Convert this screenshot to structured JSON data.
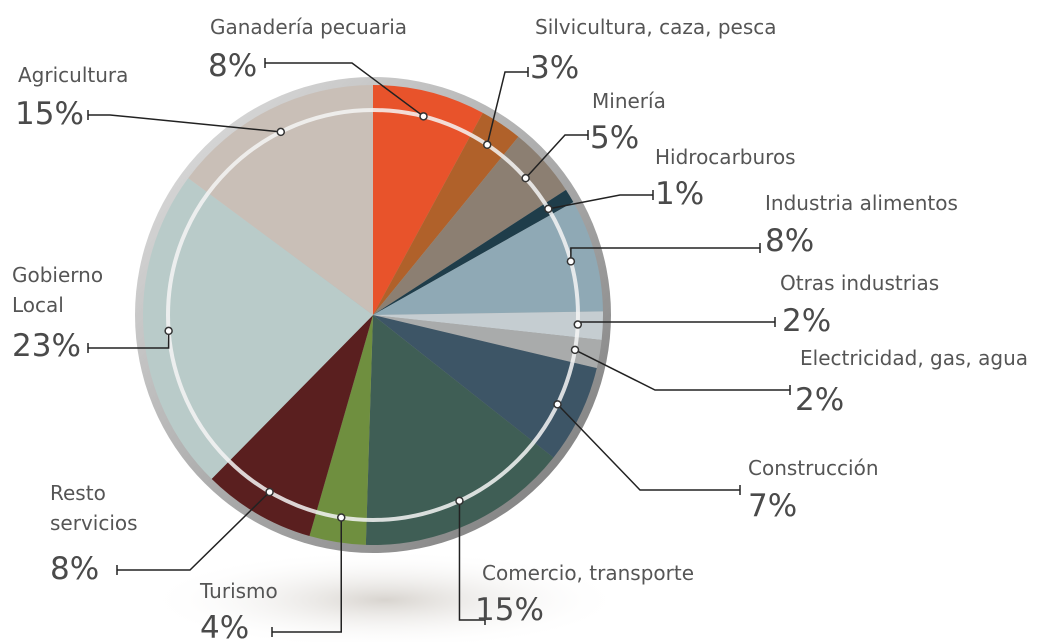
{
  "chart_data": {
    "type": "pie",
    "categories": [
      "Ganadería pecuaria",
      "Silvicultura, caza, pesca",
      "Minería",
      "Hidrocarburos",
      "Industria alimentos",
      "Otras industrias",
      "Electricidad, gas, agua",
      "Construcción",
      "Comercio, transporte",
      "Turismo",
      "Resto servicios",
      "Gobierno Local",
      "Agricultura"
    ],
    "values": [
      8,
      3,
      5,
      1,
      8,
      2,
      2,
      7,
      15,
      4,
      8,
      23,
      15
    ],
    "value_labels": [
      "8%",
      "3%",
      "5%",
      "1%",
      "8%",
      "2%",
      "2%",
      "7%",
      "15%",
      "4%",
      "8%",
      "23%",
      "15%"
    ],
    "colors": [
      "#e8532b",
      "#b0612a",
      "#8c7f72",
      "#1f3d4a",
      "#8fa9b5",
      "#c5cdd1",
      "#a9abab",
      "#3d5566",
      "#3f5e55",
      "#6f8f3f",
      "#5a1f1f",
      "#b9cbc9",
      "#c9bfb7"
    ]
  }
}
